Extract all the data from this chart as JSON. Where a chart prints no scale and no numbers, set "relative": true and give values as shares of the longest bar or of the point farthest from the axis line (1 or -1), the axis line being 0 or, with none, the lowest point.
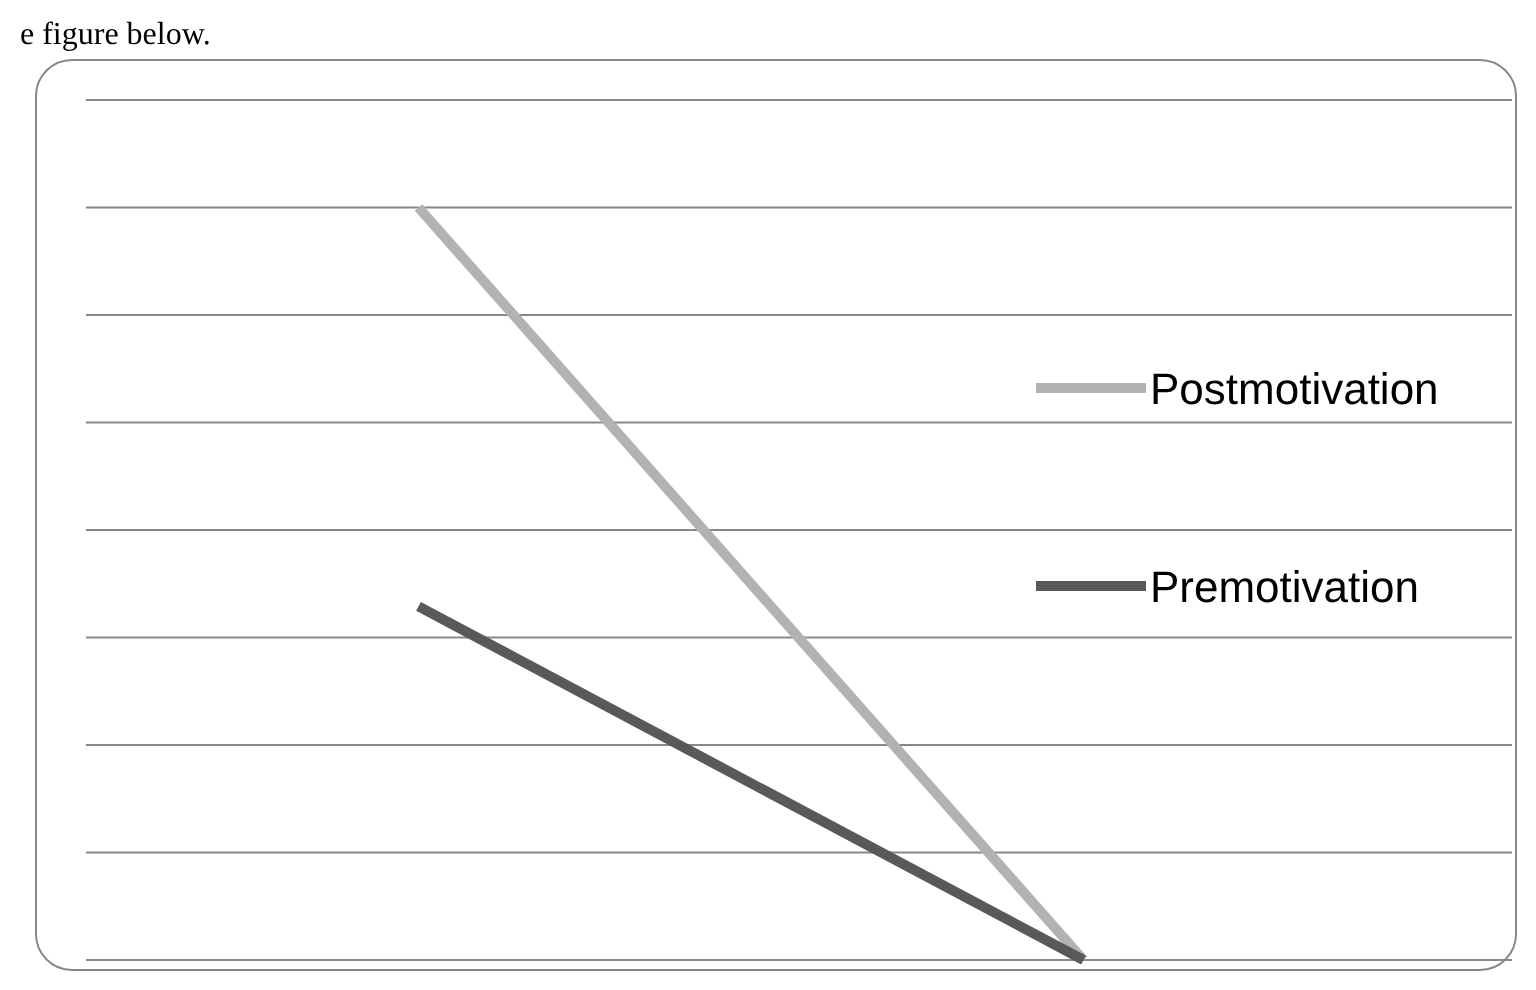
{
  "chart_data": {
    "type": "line",
    "relative": true,
    "categories": [
      null,
      null
    ],
    "series": [
      {
        "name": "Postmotivation",
        "color": "#b2b2b2",
        "values": [
          1,
          0
        ]
      },
      {
        "name": "Premotivation",
        "color": "#595959",
        "values": [
          0.47,
          0
        ]
      }
    ],
    "grid": "y",
    "legend": "right",
    "marker": "none",
    "line_style": "solid",
    "annotations": [
      "e figure below."
    ]
  }
}
